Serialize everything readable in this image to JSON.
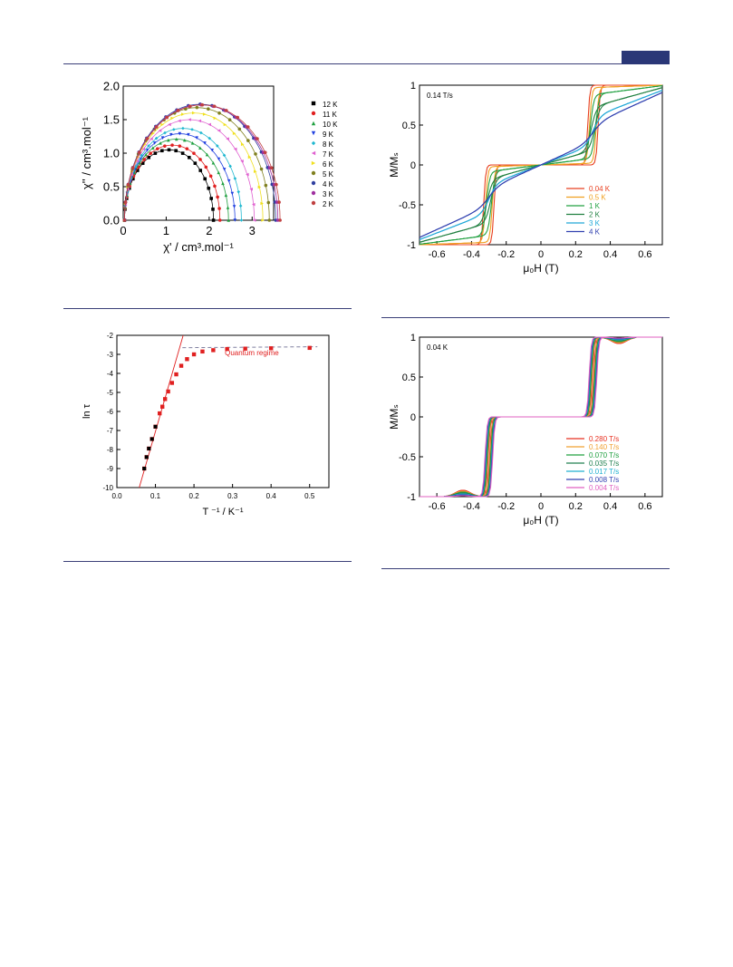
{
  "page": {
    "accent_color": "#2a3777",
    "rule_color": "#3a3f78"
  },
  "chart_data": [
    {
      "id": "cole_cole",
      "type": "scatter",
      "xlabel": "χ' / cm³.mol⁻¹",
      "ylabel": "χ'' / cm³.mol⁻¹",
      "xlim": [
        0,
        3.5
      ],
      "ylim": [
        0,
        2.0
      ],
      "xticks": [
        0,
        1,
        2,
        3
      ],
      "yticks": [
        0.0,
        0.5,
        1.0,
        1.5,
        2.0
      ],
      "ytick_labels": [
        "0.0",
        "0.5",
        "1.0",
        "1.5",
        "2.0"
      ],
      "legend_position": "right",
      "series": [
        {
          "name": "12 K",
          "color": "#000000",
          "marker": "square",
          "x0": 0.03,
          "xmax": 2.1,
          "ymax": 1.05
        },
        {
          "name": "11 K",
          "color": "#e02020",
          "marker": "circle",
          "x0": 0.03,
          "xmax": 2.25,
          "ymax": 1.12
        },
        {
          "name": "10 K",
          "color": "#20a040",
          "marker": "triangle",
          "x0": 0.03,
          "xmax": 2.45,
          "ymax": 1.21
        },
        {
          "name": "9 K",
          "color": "#2040e0",
          "marker": "tri-down",
          "x0": 0.03,
          "xmax": 2.6,
          "ymax": 1.29
        },
        {
          "name": "8 K",
          "color": "#20b8d0",
          "marker": "diamond",
          "x0": 0.03,
          "xmax": 2.75,
          "ymax": 1.37
        },
        {
          "name": "7 K",
          "color": "#e060d0",
          "marker": "tri-left",
          "x0": 0.03,
          "xmax": 3.05,
          "ymax": 1.5
        },
        {
          "name": "6 K",
          "color": "#f0e020",
          "marker": "tri-right",
          "x0": 0.03,
          "xmax": 3.25,
          "ymax": 1.6
        },
        {
          "name": "5 K",
          "color": "#808020",
          "marker": "hexagon",
          "x0": 0.03,
          "xmax": 3.4,
          "ymax": 1.68
        },
        {
          "name": "4 K",
          "color": "#3040a0",
          "marker": "star",
          "x0": 0.03,
          "xmax": 3.55,
          "ymax": 1.73
        },
        {
          "name": "3 K",
          "color": "#a030a0",
          "marker": "pentagon",
          "x0": 0.03,
          "xmax": 3.6,
          "ymax": 1.72
        },
        {
          "name": "2 K",
          "color": "#c04040",
          "marker": "circle",
          "x0": 0.03,
          "xmax": 3.65,
          "ymax": 1.72
        }
      ]
    },
    {
      "id": "hysteresis_temp",
      "type": "line",
      "annotation": "0.14 T/s",
      "xlabel": "μ₀H (T)",
      "ylabel": "M/Mₛ",
      "xlim": [
        -0.7,
        0.7
      ],
      "ylim": [
        -1,
        1
      ],
      "xticks": [
        -0.6,
        -0.4,
        -0.2,
        0,
        0.2,
        0.4,
        0.6
      ],
      "xtick_labels": [
        "-0.6",
        "-0.4",
        "-0.2",
        "0",
        "0.2",
        "0.4",
        "0.6"
      ],
      "yticks": [
        -1,
        -0.5,
        0,
        0.5,
        1
      ],
      "ytick_labels": [
        "-1",
        "-0.5",
        "0",
        "0.5",
        "1"
      ],
      "legend_position": "bottom-right",
      "series": [
        {
          "name": "0.04 K",
          "color": "#e84020",
          "step_sharpness": 0.012,
          "hyst": 0.03,
          "slope_amp": 0.0
        },
        {
          "name": "0.5 K",
          "color": "#f0a020",
          "step_sharpness": 0.014,
          "hyst": 0.02,
          "slope_amp": 0.05
        },
        {
          "name": "1 K",
          "color": "#20a040",
          "step_sharpness": 0.02,
          "hyst": 0.015,
          "slope_amp": 0.2
        },
        {
          "name": "2 K",
          "color": "#208040",
          "step_sharpness": 0.03,
          "hyst": 0.01,
          "slope_amp": 0.45
        },
        {
          "name": "3 K",
          "color": "#20a8d8",
          "step_sharpness": 0.045,
          "hyst": 0.0,
          "slope_amp": 0.65
        },
        {
          "name": "4 K",
          "color": "#3040b0",
          "step_sharpness": 0.06,
          "hyst": 0.0,
          "slope_amp": 0.78
        }
      ]
    },
    {
      "id": "arrhenius",
      "type": "scatter",
      "xlabel": "T ⁻¹ / K⁻¹",
      "ylabel": "ln τ",
      "annotation": "Quantum regime",
      "xlim": [
        0.0,
        0.55
      ],
      "ylim": [
        -10,
        -2
      ],
      "xticks": [
        0.0,
        0.1,
        0.2,
        0.3,
        0.4,
        0.5
      ],
      "xtick_labels": [
        "0.0",
        "0.1",
        "0.2",
        "0.3",
        "0.4",
        "0.5"
      ],
      "yticks": [
        -10,
        -9,
        -8,
        -7,
        -6,
        -5,
        -4,
        -3,
        -2
      ],
      "ytick_labels": [
        "-10",
        "-9",
        "-8",
        "-7",
        "-6",
        "-5",
        "-4",
        "-3",
        "-2"
      ],
      "black_points": [
        [
          0.071,
          -9.0
        ],
        [
          0.077,
          -8.4
        ],
        [
          0.083,
          -7.95
        ],
        [
          0.091,
          -7.45
        ],
        [
          0.1,
          -6.8
        ]
      ],
      "red_points": [
        [
          0.071,
          -9.0
        ],
        [
          0.077,
          -8.4
        ],
        [
          0.083,
          -7.95
        ],
        [
          0.091,
          -7.45
        ],
        [
          0.1,
          -6.8
        ],
        [
          0.111,
          -6.1
        ],
        [
          0.118,
          -5.75
        ],
        [
          0.125,
          -5.35
        ],
        [
          0.133,
          -4.95
        ],
        [
          0.143,
          -4.5
        ],
        [
          0.154,
          -4.05
        ],
        [
          0.167,
          -3.6
        ],
        [
          0.182,
          -3.25
        ],
        [
          0.2,
          -3.0
        ],
        [
          0.222,
          -2.85
        ],
        [
          0.25,
          -2.78
        ],
        [
          0.286,
          -2.72
        ],
        [
          0.333,
          -2.7
        ],
        [
          0.4,
          -2.68
        ],
        [
          0.5,
          -2.66
        ]
      ],
      "fit_line": [
        [
          0.058,
          -10
        ],
        [
          0.172,
          -2
        ]
      ],
      "quantum_line": [
        [
          0.17,
          -2.65
        ],
        [
          0.52,
          -2.6
        ]
      ]
    },
    {
      "id": "hysteresis_rate",
      "type": "line",
      "annotation": "0.04 K",
      "xlabel": "μ₀H (T)",
      "ylabel": "M/Mₛ",
      "xlim": [
        -0.7,
        0.7
      ],
      "ylim": [
        -1,
        1
      ],
      "xticks": [
        -0.6,
        -0.4,
        -0.2,
        0,
        0.2,
        0.4,
        0.6
      ],
      "xtick_labels": [
        "-0.6",
        "-0.4",
        "-0.2",
        "0",
        "0.2",
        "0.4",
        "0.6"
      ],
      "yticks": [
        -1,
        -0.5,
        0,
        0.5,
        1
      ],
      "ytick_labels": [
        "-1",
        "-0.5",
        "0",
        "0.5",
        "1"
      ],
      "legend_position": "bottom-right",
      "series": [
        {
          "name": "0.280 T/s",
          "color": "#e83020"
        },
        {
          "name": "0.140 T/s",
          "color": "#f0a030"
        },
        {
          "name": "0.070 T/s",
          "color": "#20a040"
        },
        {
          "name": "0.035 T/s",
          "color": "#208050"
        },
        {
          "name": "0.017 T/s",
          "color": "#20b0d0"
        },
        {
          "name": "0.008 T/s",
          "color": "#3040b0"
        },
        {
          "name": "0.004 T/s",
          "color": "#e060c0"
        }
      ]
    }
  ]
}
